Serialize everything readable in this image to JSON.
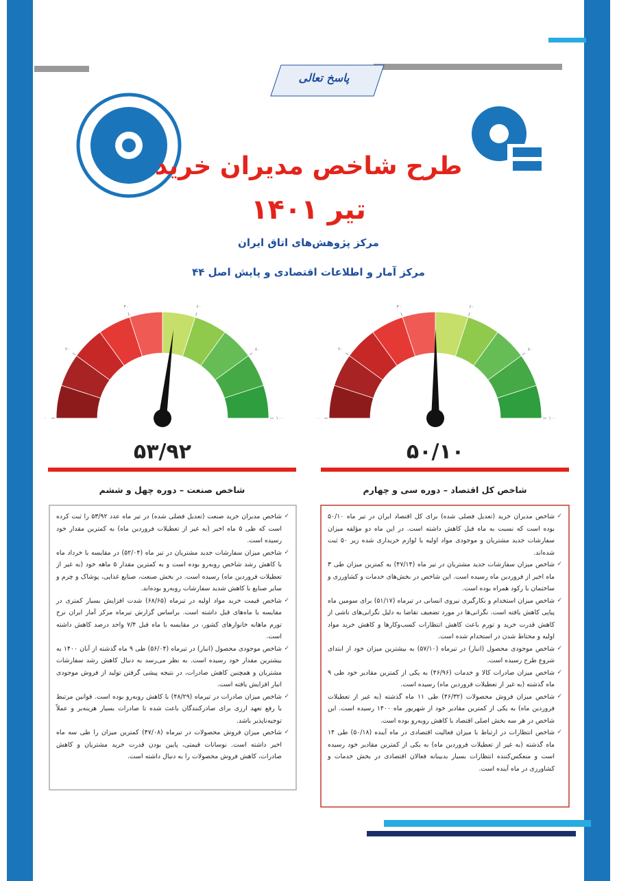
{
  "header": {
    "tab": "پاسخ تعالی",
    "title": "طرح شاخص مدیران خرید",
    "date": "تیر ۱۴۰۱",
    "subtitles": [
      "مرکز پژوهش‌های اتاق ایران",
      "مرکز آمار و اطلاعات اقتصادی و پایش اصل ۴۴"
    ]
  },
  "gauge_scale": {
    "range": [
      0,
      100
    ],
    "ticks": [
      {
        "value": 0,
        "label": "۰"
      },
      {
        "value": 20,
        "label": "۲۰"
      },
      {
        "value": 40,
        "label": "۴۰"
      },
      {
        "value": 60,
        "label": "۶۰"
      },
      {
        "value": 80,
        "label": "۸۰"
      },
      {
        "value": 100,
        "label": "۱۰۰"
      }
    ]
  },
  "sections": [
    {
      "heading": "شاخص کل اقتصاد – دوره سی و چهارم",
      "gauge": {
        "value": 50.1,
        "label": "۵۰/۱۰"
      },
      "bullets": [
        "شاخص مدیران خرید (تعدیل فصلی شده) برای کل اقتصاد ایران در تیر ماه ۵۰/۱۰ بوده است که نسبت به ماه قبل کاهش داشته است. در این ماه دو مؤلفه میزان سفارشات جدید مشتریان و موجودی مواد اولیه یا لوازم خریداری شده زیر ۵۰ ثبت شده‌اند.",
        "شاخص میزان سفارشات جدید مشتریان در تیر ماه (۴۷/۱۴) به کمترین میزان طی ۳ ماه اخیر از فروردین ماه رسیده است. این شاخص در بخش‌های خدمات و کشاورزی و ساختمان با رکود همراه بوده است.",
        "شاخص میزان استخدام و بکارگیری نیروی انسانی در تیرماه (۵۱/۱۷) برای سومین ماه پیاپی کاهش یافته است. نگرانی‌ها در مورد تضعیف تقاضا به دلیل نگرانی‌های ناشی از کاهش قدرت خرید و تورم باعث کاهش انتظارات کسب‌وکارها و کاهش خرید مواد اولیه و محتاط شدن در استخدام شده است.",
        "شاخص موجودی محصول (انبار) در تیرماه (۵۷/۱۰) به بیشترین میزان خود از ابتدای شروع طرح رسیده است.",
        "شاخص میزان صادرات کالا و خدمات (۴۶/۹۶) به یکی از کمترین مقادیر خود طی ۹ ماه گذشته (به غیر از تعطیلات فروردین ماه) رسیده است.",
        "شاخص میزان فروش محصولات (۴۶/۳۲) طی ۱۱ ماه گذشته (به غیر از تعطیلات فروردین ماه) به یکی از کمترین مقادیر خود از شهریور ماه ۱۴۰۰ رسیده است. این شاخص در هر سه بخش اصلی اقتصاد با کاهش روبه‌رو بوده است.",
        "شاخص انتظارات در ارتباط با میزان فعالیت اقتصادی در ماه آینده (۵۰/۱۸) طی ۱۴ ماه گذشته (به غیر از تعطیلات فروردین ماه) به یکی از کمترین مقادیر خود رسیده است و منعکس‌کننده انتظارات بسیار بدبینانه فعالان اقتصادی در بخش خدمات و کشاورزی در ماه آینده است."
      ]
    },
    {
      "heading": "شاخص صنعت – دوره چهل و ششم",
      "gauge": {
        "value": 53.92,
        "label": "۵۳/۹۲"
      },
      "bullets": [
        "شاخص مدیران خرید صنعت (تعدیل فصلی شده) در تیر ماه عدد ۵۳/۹۲ را ثبت کرده است که طی ۵ ماه اخیر (به غیر از تعطیلات فروردین ماه) به کمترین مقدار خود رسیده است.",
        "شاخص میزان سفارشات جدید مشتریان در تیر ماه (۵۲/۰۴) در مقایسه با خرداد ماه با کاهش رشد شاخص روبه‌رو بوده است و به کمترین مقدار ۵ ماهه خود (به غیر از تعطیلات فروردین ماه) رسیده است. در بخش صنعت، صنایع غذایی، پوشاک و چرم و سایر صنایع با کاهش شدید سفارشات روبه‌رو بوده‌اند.",
        "شاخص قیمت خرید مواد اولیه در تیرماه (۶۸/۶۵) شدت افزایش بسیار کمتری در مقایسه با ماه‌های قبل داشته است. براساس گزارش تیرماه مرکز آمار ایران نرخ تورم ماهانه خانوارهای کشور، در مقایسه با ماه قبل ۷/۴ واحد درصد کاهش داشته است.",
        "شاخص موجودی محصول (انبار) در تیرماه (۵۶/۰۴) طی ۹ ماه گذشته از آبان ۱۴۰۰ به بیشترین مقدار خود رسیده است. به نظر می‌رسد به دنبال کاهش رشد سفارشات مشتریان و همچنین کاهش صادرات، در نتیجه پیشی گرفتن تولید از فروش موجودی انبار افزایش یافته است.",
        "شاخص میزان صادرات در تیرماه (۴۸/۲۹) با کاهش روبه‌رو بوده است. قوانین مرتبط با رفع تعهد ارزی برای صادرکنندگان باعث شده تا صادرات بسیار هزینه‌بر و عملاً توجیه‌ناپذیر باشد.",
        "شاخص میزان فروش محصولات در تیرماه (۴۷/۰۸) کمترین میزان را طی سه ماه اخیر داشته است. نوسانات قیمتی، پایین بودن قدرت خرید مشتریان و کاهش صادرات، کاهش فروش محصولات را به دنبال داشته است."
      ]
    }
  ]
}
